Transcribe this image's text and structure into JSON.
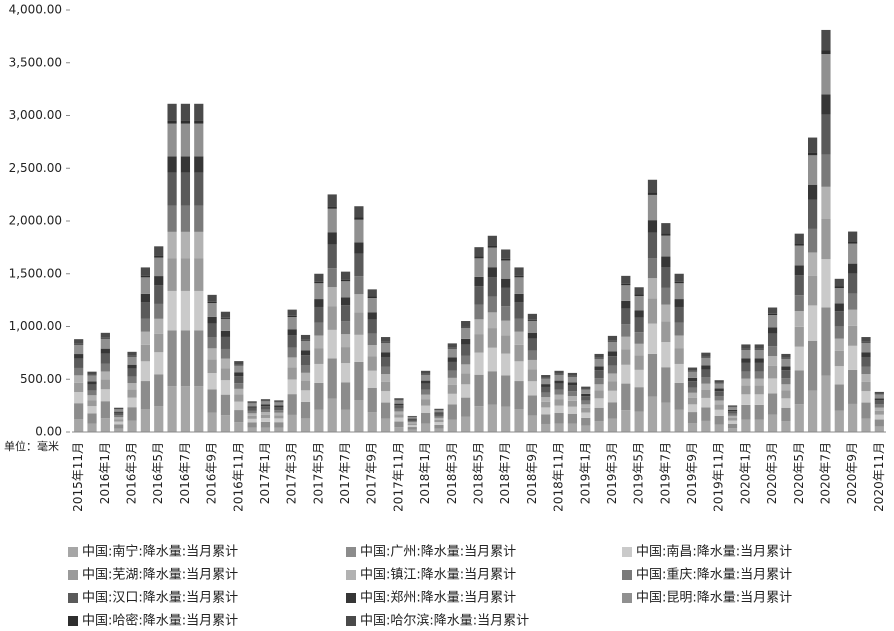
{
  "chart_data": {
    "type": "stacked_bar",
    "unit_label": "单位：毫米",
    "categories": [
      "2015年11月",
      null,
      "2016年1月",
      null,
      "2016年3月",
      null,
      "2016年5月",
      null,
      "2016年7月",
      null,
      "2016年9月",
      null,
      "2016年11月",
      null,
      "2017年1月",
      null,
      "2017年3月",
      null,
      "2017年5月",
      null,
      "2017年7月",
      null,
      "2017年9月",
      null,
      "2017年11月",
      null,
      "2018年1月",
      null,
      "2018年3月",
      null,
      "2018年5月",
      null,
      "2018年7月",
      null,
      "2018年9月",
      null,
      "2018年11月",
      null,
      "2019年1月",
      null,
      "2019年3月",
      null,
      "2019年5月",
      null,
      "2019年7月",
      null,
      "2019年9月",
      null,
      "2019年11月",
      null,
      "2020年1月",
      null,
      "2020年3月",
      null,
      "2020年5月",
      null,
      "2020年7月",
      null,
      "2020年9月",
      null,
      "2020年11月"
    ],
    "ylim": [
      0,
      4000
    ],
    "yticks": [
      {
        "value": 0,
        "label": "0.00"
      },
      {
        "value": 500,
        "label": "500.00"
      },
      {
        "value": 1000,
        "label": "1,000.00"
      },
      {
        "value": 1500,
        "label": "1,500.00"
      },
      {
        "value": 2000,
        "label": "2,000.00"
      },
      {
        "value": 2500,
        "label": "2,500.00"
      },
      {
        "value": 3000,
        "label": "3,000.00"
      },
      {
        "value": 3500,
        "label": "3,500.00"
      },
      {
        "value": 4000,
        "label": "4,000.00"
      }
    ],
    "series": [
      {
        "name": "中国:南宁:降水量:当月累计",
        "color": "#a6a6a6",
        "values": [
          123,
          80,
          132,
          32,
          106,
          218,
          246,
          435,
          435,
          435,
          182,
          160,
          94,
          41,
          43,
          42,
          162,
          129,
          210,
          315,
          213,
          300,
          189,
          126,
          45,
          21,
          81,
          31,
          118,
          147,
          245,
          260,
          242,
          218,
          157,
          76,
          81,
          78,
          60,
          104,
          127,
          207,
          192,
          335,
          277,
          210,
          85,
          105,
          69,
          35,
          116,
          116,
          165,
          104,
          263,
          391,
          533,
          203,
          266,
          126,
          53
        ]
      },
      {
        "name": "中国:广州:降水量:当月累计",
        "color": "#8c8c8c",
        "values": [
          150,
          97,
          160,
          39,
          129,
          265,
          299,
          529,
          529,
          529,
          221,
          194,
          114,
          49,
          53,
          51,
          197,
          156,
          255,
          383,
          258,
          364,
          230,
          153,
          54,
          26,
          99,
          37,
          143,
          179,
          298,
          316,
          294,
          265,
          190,
          92,
          99,
          95,
          73,
          126,
          155,
          252,
          233,
          406,
          337,
          255,
          104,
          128,
          83,
          43,
          141,
          141,
          201,
          126,
          320,
          474,
          648,
          247,
          323,
          153,
          65
        ]
      },
      {
        "name": "中国:南昌:降水量:当月累计",
        "color": "#cacaca",
        "values": [
          106,
          68,
          113,
          28,
          91,
          187,
          211,
          373,
          373,
          373,
          156,
          137,
          80,
          35,
          37,
          36,
          139,
          110,
          180,
          270,
          182,
          257,
          162,
          108,
          38,
          18,
          70,
          26,
          101,
          126,
          210,
          223,
          208,
          187,
          134,
          65,
          70,
          67,
          52,
          89,
          109,
          178,
          164,
          287,
          238,
          180,
          73,
          90,
          59,
          30,
          100,
          100,
          142,
          89,
          226,
          335,
          457,
          174,
          228,
          108,
          46
        ]
      },
      {
        "name": "中国:芜湖:降水量:当月累计",
        "color": "#9a9a9a",
        "values": [
          88,
          57,
          94,
          23,
          76,
          156,
          176,
          311,
          311,
          311,
          130,
          114,
          67,
          29,
          31,
          30,
          116,
          92,
          150,
          225,
          152,
          214,
          135,
          90,
          32,
          15,
          58,
          22,
          84,
          105,
          175,
          186,
          173,
          156,
          112,
          54,
          58,
          56,
          43,
          74,
          91,
          148,
          137,
          239,
          198,
          150,
          61,
          75,
          49,
          25,
          83,
          83,
          118,
          74,
          188,
          279,
          381,
          145,
          190,
          90,
          38
        ]
      },
      {
        "name": "中国:镇江:降水量:当月累计",
        "color": "#b2b2b2",
        "values": [
          70,
          46,
          75,
          18,
          61,
          125,
          141,
          249,
          249,
          249,
          104,
          91,
          54,
          23,
          25,
          24,
          93,
          74,
          120,
          180,
          122,
          171,
          108,
          72,
          26,
          12,
          46,
          18,
          67,
          84,
          140,
          149,
          138,
          125,
          90,
          43,
          46,
          45,
          34,
          59,
          73,
          118,
          110,
          191,
          158,
          120,
          49,
          60,
          39,
          20,
          66,
          66,
          94,
          59,
          150,
          223,
          305,
          116,
          152,
          72,
          30
        ]
      },
      {
        "name": "中国:重庆:降水量:当月累计",
        "color": "#7a7a7a",
        "values": [
          70,
          46,
          75,
          18,
          61,
          125,
          141,
          249,
          249,
          249,
          104,
          91,
          54,
          23,
          25,
          24,
          93,
          74,
          120,
          180,
          122,
          171,
          108,
          72,
          26,
          12,
          46,
          18,
          67,
          84,
          140,
          149,
          138,
          125,
          90,
          43,
          46,
          45,
          34,
          59,
          73,
          118,
          110,
          191,
          158,
          120,
          49,
          60,
          39,
          20,
          66,
          66,
          94,
          59,
          150,
          223,
          305,
          116,
          152,
          72,
          30
        ]
      },
      {
        "name": "中国:汉口:降水量:当月累计",
        "color": "#5a5a5a",
        "values": [
          88,
          57,
          94,
          23,
          76,
          156,
          176,
          311,
          311,
          311,
          130,
          114,
          67,
          29,
          31,
          30,
          116,
          92,
          150,
          225,
          152,
          214,
          135,
          90,
          32,
          15,
          58,
          22,
          84,
          105,
          175,
          186,
          173,
          156,
          112,
          54,
          58,
          56,
          43,
          74,
          91,
          148,
          137,
          239,
          198,
          150,
          61,
          75,
          49,
          25,
          83,
          83,
          118,
          74,
          188,
          279,
          381,
          145,
          190,
          90,
          38
        ]
      },
      {
        "name": "中国:郑州:降水量:当月累计",
        "color": "#363636",
        "values": [
          44,
          29,
          47,
          12,
          38,
          78,
          88,
          156,
          156,
          156,
          65,
          57,
          34,
          15,
          16,
          15,
          58,
          46,
          75,
          113,
          76,
          107,
          68,
          45,
          16,
          8,
          29,
          11,
          42,
          53,
          88,
          93,
          87,
          78,
          56,
          27,
          29,
          28,
          22,
          37,
          46,
          74,
          69,
          120,
          99,
          75,
          31,
          38,
          25,
          13,
          42,
          42,
          59,
          37,
          94,
          140,
          191,
          73,
          95,
          45,
          19
        ]
      },
      {
        "name": "中国:昆明:降水量:当月累计",
        "color": "#909090",
        "values": [
          88,
          57,
          94,
          23,
          76,
          156,
          176,
          311,
          311,
          311,
          130,
          114,
          67,
          29,
          31,
          30,
          116,
          92,
          150,
          225,
          152,
          214,
          135,
          90,
          32,
          15,
          58,
          22,
          84,
          105,
          175,
          186,
          173,
          156,
          112,
          54,
          58,
          56,
          43,
          74,
          91,
          148,
          137,
          239,
          198,
          150,
          61,
          75,
          49,
          25,
          83,
          83,
          118,
          74,
          188,
          279,
          381,
          145,
          190,
          90,
          38
        ]
      },
      {
        "name": "中国:哈密:降水量:当月累计",
        "color": "#2e2e2e",
        "values": [
          9,
          6,
          9,
          2,
          8,
          16,
          18,
          31,
          31,
          31,
          13,
          11,
          7,
          3,
          3,
          3,
          12,
          9,
          15,
          23,
          15,
          21,
          14,
          9,
          3,
          2,
          6,
          2,
          8,
          11,
          18,
          19,
          17,
          16,
          11,
          5,
          6,
          6,
          4,
          7,
          9,
          15,
          14,
          24,
          20,
          15,
          6,
          8,
          5,
          3,
          8,
          8,
          12,
          7,
          19,
          28,
          38,
          15,
          19,
          9,
          4
        ]
      },
      {
        "name": "中国:哈尔滨:降水量:当月累计",
        "color": "#4a4a4a",
        "values": [
          44,
          29,
          47,
          12,
          38,
          78,
          88,
          156,
          156,
          156,
          65,
          57,
          34,
          15,
          16,
          15,
          58,
          46,
          75,
          113,
          76,
          107,
          68,
          45,
          16,
          8,
          29,
          11,
          42,
          53,
          88,
          93,
          87,
          78,
          56,
          27,
          29,
          28,
          22,
          37,
          46,
          74,
          69,
          120,
          99,
          75,
          31,
          38,
          25,
          13,
          42,
          42,
          59,
          37,
          94,
          140,
          191,
          73,
          95,
          45,
          19
        ]
      }
    ],
    "legend_position": "bottom"
  }
}
